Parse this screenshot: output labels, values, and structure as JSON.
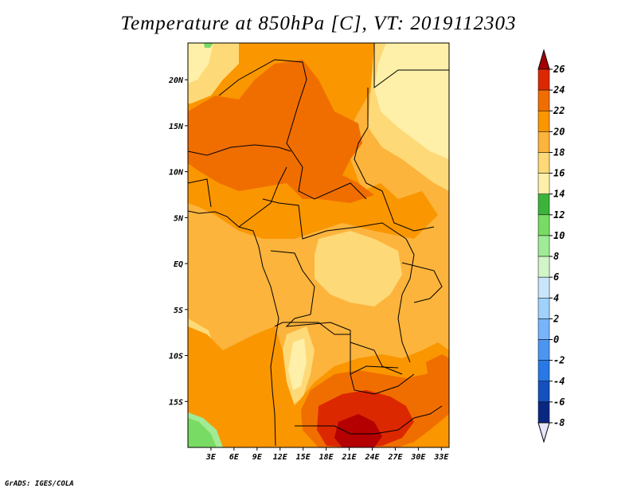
{
  "title": "Temperature at 850hPa [C], VT: 2019112303",
  "credit": "GrADS: IGES/COLA",
  "map": {
    "lon_range": [
      0,
      34
    ],
    "lat_range": [
      -20,
      24
    ],
    "lat_ticks": [
      "20N",
      "15N",
      "10N",
      "5N",
      "EQ",
      "5S",
      "10S",
      "15S"
    ],
    "lat_tick_values": [
      20,
      15,
      10,
      5,
      0,
      -5,
      -10,
      -15
    ],
    "lon_ticks": [
      "3E",
      "6E",
      "9E",
      "12E",
      "15E",
      "18E",
      "21E",
      "24E",
      "27E",
      "30E",
      "33E"
    ],
    "lon_tick_values": [
      3,
      6,
      9,
      12,
      15,
      18,
      21,
      24,
      27,
      30,
      33
    ]
  },
  "colorbar": {
    "levels": [
      26,
      24,
      22,
      20,
      18,
      16,
      14,
      12,
      10,
      8,
      6,
      4,
      2,
      0,
      -2,
      -4,
      -6,
      -8
    ],
    "labels": [
      "26",
      "24",
      "22",
      "20",
      "18",
      "16",
      "14",
      "12",
      "10",
      "8",
      "6",
      "4",
      "2",
      "0",
      "-2",
      "-4",
      "-6",
      "-8"
    ],
    "colors_top_to_bottom": [
      "#a50000",
      "#dc2800",
      "#f06e00",
      "#fa9600",
      "#fcb43c",
      "#fed978",
      "#fef0a8",
      "#3cb43c",
      "#78dc64",
      "#a0eb96",
      "#d2f5c8",
      "#c8e6fa",
      "#a0d2fa",
      "#78b4fa",
      "#4b96f0",
      "#2878e6",
      "#1450be",
      "#0a2882",
      "#000a64",
      "#e6e6fa"
    ]
  },
  "colors": {
    "t16": "#fef0a8",
    "t18": "#fed978",
    "t20": "#fcb43c",
    "t22": "#fa9600",
    "t24": "#f06e00",
    "t26": "#dc2800",
    "t28": "#b40000",
    "green12": "#78dc64",
    "green10": "#a0eb96"
  }
}
